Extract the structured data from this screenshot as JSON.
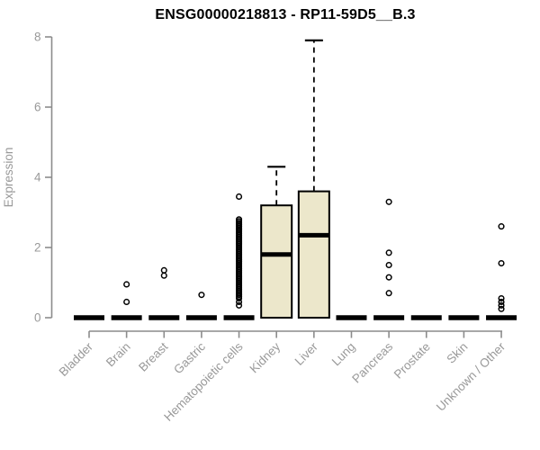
{
  "page": {
    "background": "#FFFFFF"
  },
  "chart_data": {
    "type": "boxplot",
    "title": "ENSG00000218813 - RP11-59D5__B.3",
    "ylabel": "Expression",
    "xlabel": "",
    "ylim": [
      0,
      8
    ],
    "yticks": [
      0,
      2,
      4,
      6,
      8
    ],
    "grid": false,
    "legend": "none",
    "box_fill": "#ECE7CB",
    "box_stroke": "#000000",
    "axis_color": "#8C8C8C",
    "tick_label_color": "#999999",
    "title_color": "#000000",
    "categories": [
      "Bladder",
      "Brain",
      "Breast",
      "Gastric",
      "Hematopoietic cells",
      "Kidney",
      "Liver",
      "Lung",
      "Pancreas",
      "Prostate",
      "Skin",
      "Unknown / Other"
    ],
    "series": [
      {
        "name": "Bladder",
        "whisker_low": 0,
        "q1": 0,
        "median": 0,
        "q3": 0,
        "whisker_high": 0,
        "outliers": []
      },
      {
        "name": "Brain",
        "whisker_low": 0,
        "q1": 0,
        "median": 0,
        "q3": 0,
        "whisker_high": 0,
        "outliers": [
          0.95,
          0.45
        ]
      },
      {
        "name": "Breast",
        "whisker_low": 0,
        "q1": 0,
        "median": 0,
        "q3": 0,
        "whisker_high": 0,
        "outliers": [
          1.35,
          1.2
        ]
      },
      {
        "name": "Gastric",
        "whisker_low": 0,
        "q1": 0,
        "median": 0,
        "q3": 0,
        "whisker_high": 0,
        "outliers": [
          0.65
        ]
      },
      {
        "name": "Hematopoietic cells",
        "whisker_low": 0,
        "q1": 0,
        "median": 0,
        "q3": 0,
        "whisker_high": 0,
        "outliers": [
          3.45,
          2.8,
          2.75,
          2.7,
          2.65,
          2.6,
          2.55,
          2.5,
          2.45,
          2.4,
          2.35,
          2.3,
          2.25,
          2.2,
          2.15,
          2.1,
          2.05,
          2.0,
          1.95,
          1.9,
          1.85,
          1.8,
          1.75,
          1.7,
          1.65,
          1.6,
          1.55,
          1.5,
          1.45,
          1.4,
          1.35,
          1.3,
          1.25,
          1.2,
          1.15,
          1.1,
          1.05,
          1.0,
          0.95,
          0.9,
          0.85,
          0.8,
          0.75,
          0.7,
          0.65,
          0.6,
          0.55,
          0.45,
          0.35
        ]
      },
      {
        "name": "Kidney",
        "whisker_low": 0,
        "q1": 0,
        "median": 1.8,
        "q3": 3.2,
        "whisker_high": 4.3,
        "outliers": []
      },
      {
        "name": "Liver",
        "whisker_low": 0,
        "q1": 0,
        "median": 2.35,
        "q3": 3.6,
        "whisker_high": 7.9,
        "outliers": []
      },
      {
        "name": "Lung",
        "whisker_low": 0,
        "q1": 0,
        "median": 0,
        "q3": 0,
        "whisker_high": 0,
        "outliers": []
      },
      {
        "name": "Pancreas",
        "whisker_low": 0,
        "q1": 0,
        "median": 0,
        "q3": 0,
        "whisker_high": 0,
        "outliers": [
          3.3,
          1.85,
          1.5,
          1.15,
          0.7
        ]
      },
      {
        "name": "Prostate",
        "whisker_low": 0,
        "q1": 0,
        "median": 0,
        "q3": 0,
        "whisker_high": 0,
        "outliers": []
      },
      {
        "name": "Skin",
        "whisker_low": 0,
        "q1": 0,
        "median": 0,
        "q3": 0,
        "whisker_high": 0,
        "outliers": []
      },
      {
        "name": "Unknown / Other",
        "whisker_low": 0,
        "q1": 0,
        "median": 0,
        "q3": 0,
        "whisker_high": 0,
        "outliers": [
          2.6,
          1.55,
          0.55,
          0.45,
          0.35,
          0.25
        ]
      }
    ]
  }
}
